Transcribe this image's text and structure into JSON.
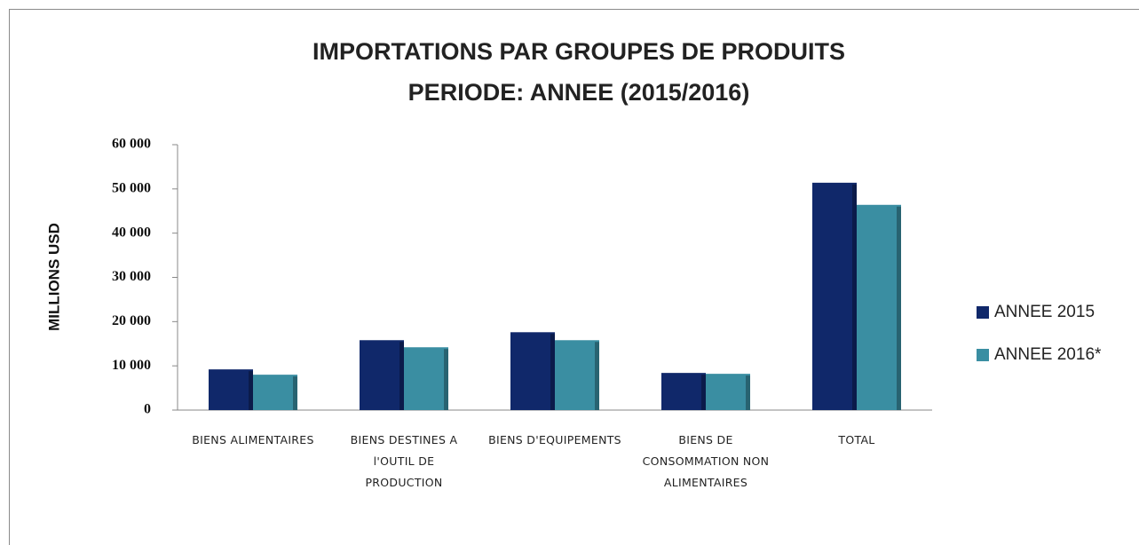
{
  "chart_data": {
    "type": "bar",
    "title": "IMPORTATIONS PAR GROUPES DE PRODUITS",
    "subtitle": "PERIODE: ANNEE (2015/2016)",
    "y_label": "MILLIONS USD",
    "categories": [
      "BIENS ALIMENTAIRES",
      "BIENS DESTINES A l'OUTIL DE PRODUCTION",
      "BIENS D'EQUIPEMENTS",
      "BIENS DE CONSOMMATION NON ALIMENTAIRES",
      "TOTAL"
    ],
    "series": [
      {
        "name": "ANNEE 2015",
        "color": "#10286a",
        "values": [
          9200,
          15800,
          17600,
          8400,
          51400
        ]
      },
      {
        "name": "ANNEE 2016*",
        "color": "#3a8ea2",
        "values": [
          8000,
          14200,
          15800,
          8200,
          46400
        ]
      }
    ],
    "ylim": [
      0,
      60000
    ],
    "yticks": [
      0,
      {
        "value": 10000,
        "label": "10 000"
      },
      {
        "value": 20000,
        "label": "20 000"
      },
      {
        "value": 30000,
        "label": "30 000"
      },
      {
        "value": 40000,
        "label": "40 000"
      },
      {
        "value": 50000,
        "label": "50 000"
      },
      {
        "value": 60000,
        "label": "60 000"
      }
    ],
    "legend": "right"
  }
}
